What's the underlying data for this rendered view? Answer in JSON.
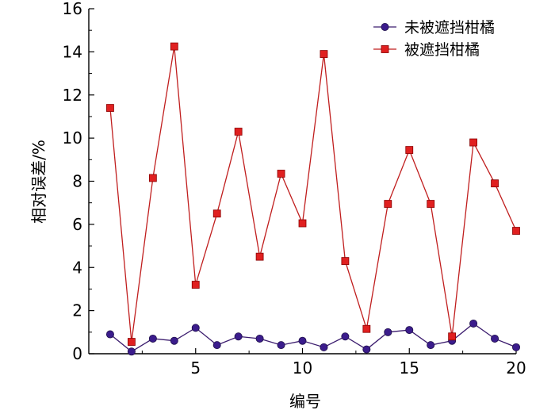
{
  "chart_data": {
    "type": "line",
    "xlabel": "编号",
    "ylabel": "相对误差/%",
    "xlim": [
      0,
      20
    ],
    "ylim": [
      0,
      16
    ],
    "x_ticks": [
      5,
      10,
      15,
      20
    ],
    "y_ticks": [
      0,
      2,
      4,
      6,
      8,
      10,
      12,
      14,
      16
    ],
    "grid": false,
    "legend_position": "top-right",
    "x": [
      1,
      2,
      3,
      4,
      5,
      6,
      7,
      8,
      9,
      10,
      11,
      12,
      13,
      14,
      15,
      16,
      17,
      18,
      19,
      20
    ],
    "series": [
      {
        "name": "未被遮挡柑橘",
        "marker": "circle",
        "line_color": "#3b1c6e",
        "marker_color": "#3b1c8c",
        "values": [
          0.9,
          0.1,
          0.7,
          0.6,
          1.2,
          0.4,
          0.8,
          0.7,
          0.4,
          0.6,
          0.3,
          0.8,
          0.2,
          1.0,
          1.1,
          0.4,
          0.6,
          1.4,
          0.7,
          0.3
        ]
      },
      {
        "name": "被遮挡柑橘",
        "marker": "square",
        "line_color": "#c01e1e",
        "marker_color": "#e02020",
        "values": [
          11.4,
          0.55,
          8.15,
          14.25,
          3.2,
          6.5,
          10.3,
          4.5,
          8.35,
          6.05,
          13.9,
          4.3,
          1.15,
          6.95,
          9.45,
          6.95,
          0.8,
          9.8,
          7.9,
          5.7
        ]
      }
    ]
  }
}
